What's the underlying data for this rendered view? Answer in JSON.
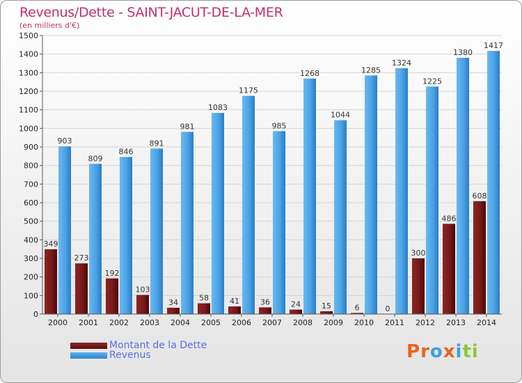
{
  "title": "Revenus/Dette - SAINT-JACUT-DE-LA-MER",
  "subtitle": "(en milliers d'€)",
  "legend": {
    "debt_label": "Montant de la Dette",
    "revenue_label": "Revenus"
  },
  "logo": {
    "text": "Proxiti",
    "letters": [
      "P",
      "r",
      "o",
      "x",
      "i",
      "t",
      "i"
    ],
    "colors": [
      "#e8641e",
      "#e8641e",
      "#3aa0e0",
      "#e8641e",
      "#3aa0e0",
      "#8cc83c",
      "#8cc83c"
    ]
  },
  "colors": {
    "debt": "#6e1414",
    "revenue": "#4aa3e6",
    "title": "#c0306a",
    "legend_text": "#5a6ee8"
  },
  "chart_data": {
    "type": "bar",
    "title": "Revenus/Dette - SAINT-JACUT-DE-LA-MER",
    "subtitle": "(en milliers d'€)",
    "xlabel": "",
    "ylabel": "",
    "ylim": [
      0,
      1500
    ],
    "yticks": [
      0,
      100,
      200,
      300,
      400,
      500,
      600,
      700,
      800,
      900,
      1000,
      1100,
      1200,
      1300,
      1400,
      1500
    ],
    "grid": true,
    "legend_position": "bottom-left",
    "categories": [
      "2000",
      "2001",
      "2002",
      "2003",
      "2004",
      "2005",
      "2006",
      "2007",
      "2008",
      "2009",
      "2010",
      "2011",
      "2012",
      "2013",
      "2014"
    ],
    "series": [
      {
        "name": "Montant de la Dette",
        "values": [
          349,
          273,
          192,
          103,
          34,
          58,
          41,
          36,
          24,
          15,
          6,
          0,
          300,
          486,
          608
        ]
      },
      {
        "name": "Revenus",
        "values": [
          903,
          809,
          846,
          891,
          981,
          1083,
          1175,
          985,
          1268,
          1044,
          1285,
          1324,
          1225,
          1380,
          1417
        ]
      }
    ]
  }
}
